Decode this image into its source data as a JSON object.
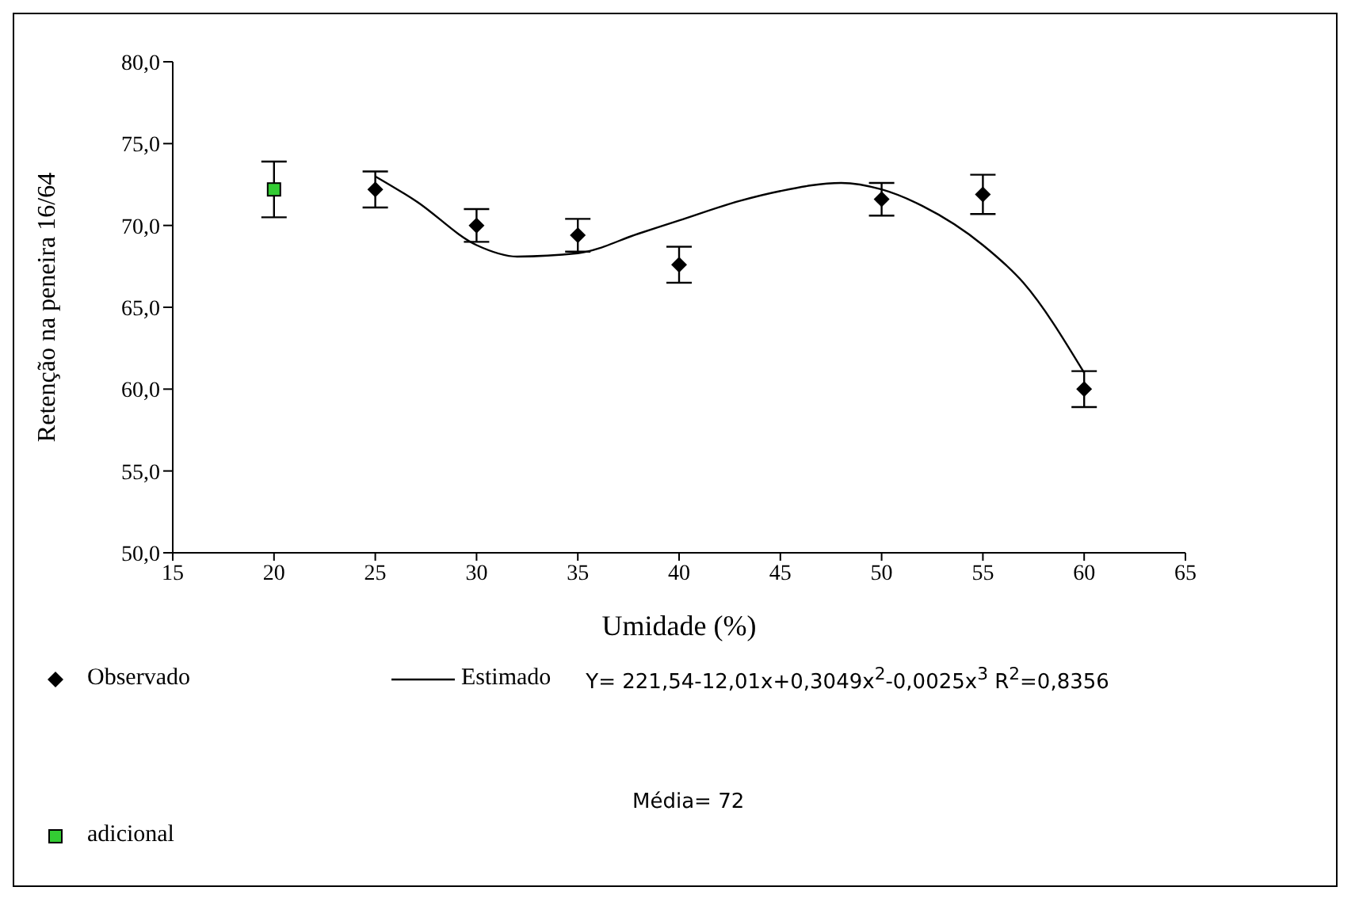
{
  "chart_data": {
    "type": "scatter",
    "xlabel": "Umidade (%)",
    "ylabel": "Retenção na peneira 16/64",
    "xlim": [
      15,
      65
    ],
    "xticks": [
      15,
      20,
      25,
      30,
      35,
      40,
      45,
      50,
      55,
      60,
      65
    ],
    "ylim": [
      50,
      80
    ],
    "yticks": [
      {
        "value": 50,
        "label": "50,0"
      },
      {
        "value": 55,
        "label": "55,0"
      },
      {
        "value": 60,
        "label": "60,0"
      },
      {
        "value": 65,
        "label": "65,0"
      },
      {
        "value": 70,
        "label": "70,0"
      },
      {
        "value": 75,
        "label": "75,0"
      },
      {
        "value": 80,
        "label": "80,0"
      }
    ],
    "legend": "bottom",
    "series": [
      {
        "name": "Observado",
        "marker": "diamond",
        "color": "#000000",
        "x": [
          25,
          30,
          35,
          40,
          50,
          55,
          60
        ],
        "values": [
          72.2,
          70.0,
          69.4,
          67.6,
          71.6,
          71.9,
          60.0
        ],
        "errors": [
          1.1,
          1.0,
          1.0,
          1.1,
          1.0,
          1.2,
          1.1
        ]
      },
      {
        "name": "Estimado",
        "type": "line",
        "marker": "none",
        "color": "#000000",
        "x": [
          25,
          27,
          30,
          32,
          35,
          38,
          40,
          43,
          45,
          48,
          50,
          52,
          55,
          57,
          60
        ],
        "values": [
          73.0,
          71.5,
          68.8,
          68.1,
          68.3,
          69.5,
          70.3,
          71.5,
          72.1,
          72.6,
          72.2,
          71.2,
          68.8,
          66.5,
          61.0
        ]
      },
      {
        "name": "adicional",
        "marker": "square",
        "color": "#33cc33",
        "x": [
          20
        ],
        "values": [
          72.2
        ],
        "errors": [
          1.7
        ]
      }
    ],
    "annotations": [
      "Y= 221,54-12,01x+0,3049x$^{2}$-0,0025x$^{3}$   R$^{2}$=0,8356",
      "Média= 72"
    ]
  }
}
